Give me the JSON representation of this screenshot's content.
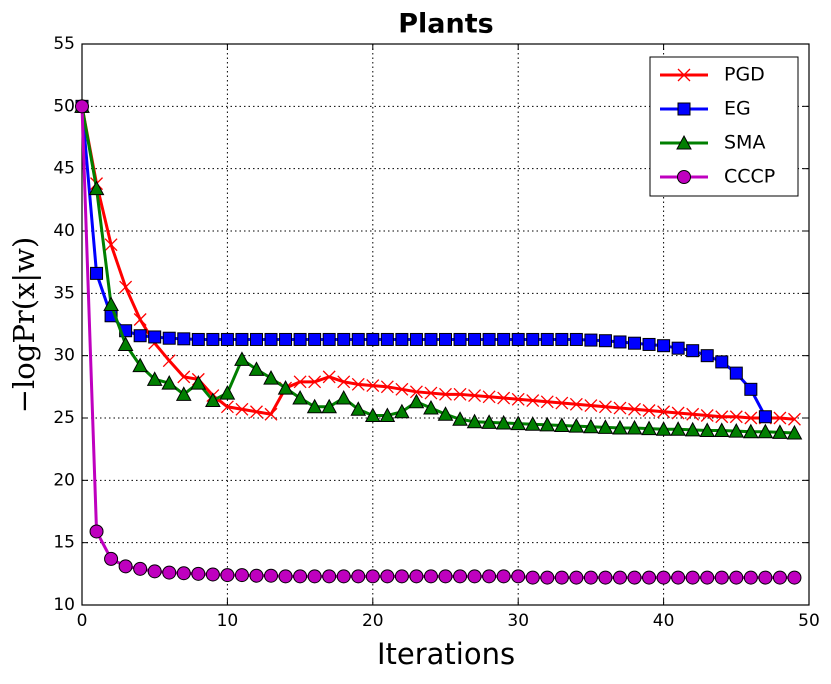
{
  "chart_data": {
    "type": "line",
    "title": "Plants",
    "xlabel": "Iterations",
    "ylabel": "−logPr(x|w)",
    "x": [
      0,
      1,
      2,
      3,
      4,
      5,
      6,
      7,
      8,
      9,
      10,
      11,
      12,
      13,
      14,
      15,
      16,
      17,
      18,
      19,
      20,
      21,
      22,
      23,
      24,
      25,
      26,
      27,
      28,
      29,
      30,
      31,
      32,
      33,
      34,
      35,
      36,
      37,
      38,
      39,
      40,
      41,
      42,
      43,
      44,
      45,
      46,
      47,
      48,
      49
    ],
    "series": [
      {
        "name": "PGD",
        "color": "#ff0000",
        "marker": "x",
        "values": [
          50,
          43.8,
          38.9,
          35.5,
          32.9,
          31,
          29.6,
          28.3,
          28.1,
          26.8,
          25.9,
          25.7,
          25.5,
          25.3,
          27.4,
          27.9,
          27.9,
          28.3,
          27.9,
          27.7,
          27.6,
          27.5,
          27.3,
          27.1,
          27,
          26.9,
          26.9,
          26.8,
          26.7,
          26.6,
          26.5,
          26.4,
          26.3,
          26.2,
          26.1,
          26,
          25.9,
          25.8,
          25.7,
          25.6,
          25.5,
          25.4,
          25.3,
          25.2,
          25.1,
          25.1,
          25,
          25,
          25,
          24.9
        ]
      },
      {
        "name": "EG",
        "color": "#0000ff",
        "marker": "square",
        "values": [
          50,
          36.6,
          33.2,
          32,
          31.6,
          31.5,
          31.4,
          31.35,
          31.3,
          31.3,
          31.3,
          31.3,
          31.3,
          31.3,
          31.3,
          31.3,
          31.3,
          31.3,
          31.3,
          31.3,
          31.3,
          31.3,
          31.3,
          31.3,
          31.3,
          31.3,
          31.3,
          31.3,
          31.3,
          31.3,
          31.3,
          31.3,
          31.3,
          31.3,
          31.3,
          31.25,
          31.2,
          31.1,
          31,
          30.9,
          30.8,
          30.6,
          30.4,
          30,
          29.5,
          28.6,
          27.3,
          25.1,
          null,
          null
        ]
      },
      {
        "name": "SMA",
        "color": "#007f00",
        "marker": "triangle",
        "values": [
          50,
          43.4,
          34.1,
          30.9,
          29.2,
          28.1,
          27.8,
          26.9,
          27.8,
          26.4,
          27,
          29.7,
          28.9,
          28.2,
          27.4,
          26.6,
          25.9,
          25.9,
          26.6,
          25.7,
          25.2,
          25.2,
          25.5,
          26.3,
          25.8,
          25.3,
          24.9,
          24.7,
          24.65,
          24.6,
          24.55,
          24.5,
          24.45,
          24.4,
          24.35,
          24.3,
          24.25,
          24.2,
          24.2,
          24.15,
          24.1,
          24.1,
          24.05,
          24,
          24,
          23.95,
          23.9,
          23.9,
          23.85,
          23.8
        ]
      },
      {
        "name": "CCCP",
        "color": "#bf00bf",
        "marker": "circle",
        "values": [
          50,
          15.9,
          13.7,
          13.1,
          12.9,
          12.7,
          12.6,
          12.55,
          12.5,
          12.45,
          12.4,
          12.4,
          12.35,
          12.35,
          12.3,
          12.3,
          12.3,
          12.3,
          12.3,
          12.3,
          12.3,
          12.3,
          12.3,
          12.3,
          12.3,
          12.3,
          12.3,
          12.3,
          12.3,
          12.3,
          12.3,
          12.2,
          12.2,
          12.2,
          12.2,
          12.2,
          12.2,
          12.2,
          12.2,
          12.2,
          12.2,
          12.2,
          12.2,
          12.2,
          12.2,
          12.2,
          12.2,
          12.2,
          12.2,
          12.2
        ]
      }
    ],
    "xlim": [
      0,
      50
    ],
    "xticks": [
      0,
      10,
      20,
      30,
      40,
      50
    ],
    "ylim": [
      10,
      55
    ],
    "yticks": [
      10,
      15,
      20,
      25,
      30,
      35,
      40,
      45,
      50,
      55
    ],
    "grid": true,
    "legend": "upper right"
  }
}
